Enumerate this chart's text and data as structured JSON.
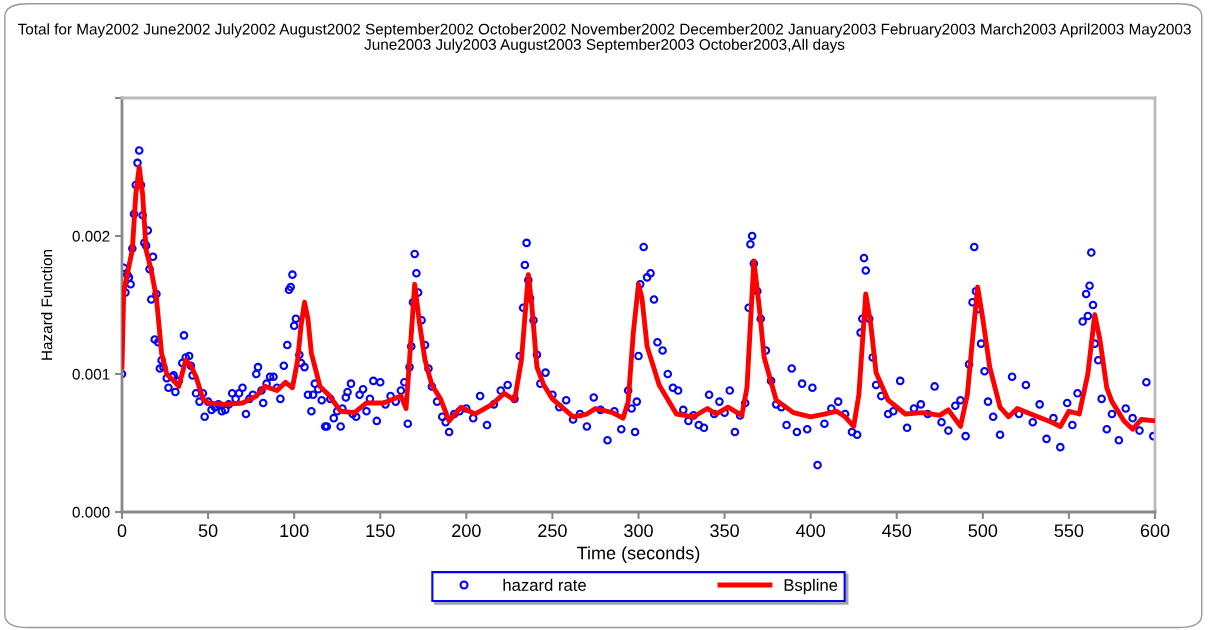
{
  "chart_data": {
    "type": "scatter",
    "title": "Total for May2002 June2002 July2002 August2002 September2002 October2002 November2002 December2002 January2003 February2003 March2003 April2003 May2003 June2003 July2003 August2003 September2003 October2003,All days",
    "xlabel": "Time (seconds)",
    "ylabel": "Hazard Function",
    "xlim": [
      0,
      600
    ],
    "xticks": [
      0,
      50,
      100,
      150,
      200,
      250,
      300,
      350,
      400,
      450,
      500,
      550,
      600
    ],
    "ylim": [
      0,
      0.003
    ],
    "yticks": [
      {
        "value": 0,
        "label": "0.000"
      },
      {
        "value": 0.001,
        "label": "0.001"
      },
      {
        "value": 0.002,
        "label": "0.002"
      },
      {
        "value": 0.003,
        "label": null
      }
    ],
    "grid": false,
    "legend": "bottom",
    "series": [
      {
        "name": "hazard rate",
        "color": "#0000ff",
        "marker": "circle",
        "x": [
          0,
          1,
          2,
          3,
          4,
          5,
          6,
          7,
          8,
          9,
          10,
          11,
          12,
          13,
          14,
          15,
          16,
          17,
          18,
          19,
          20,
          21,
          22,
          23,
          24,
          26,
          27,
          29,
          30,
          31,
          33,
          35,
          36,
          37,
          39,
          40,
          41,
          43,
          45,
          47,
          48,
          50,
          52,
          54,
          56,
          58,
          60,
          62,
          64,
          66,
          68,
          70,
          72,
          74,
          76,
          78,
          79,
          81,
          82,
          84,
          86,
          88,
          90,
          92,
          94,
          96,
          97,
          98,
          99,
          100,
          101,
          103,
          104,
          106,
          108,
          110,
          111,
          112,
          114,
          116,
          118,
          119,
          121,
          123,
          125,
          127,
          128,
          130,
          131,
          133,
          134,
          136,
          138,
          140,
          142,
          144,
          146,
          148,
          150,
          153,
          156,
          159,
          162,
          164,
          166,
          167,
          168,
          169,
          170,
          171,
          172,
          174,
          176,
          178,
          180,
          183,
          186,
          188,
          190,
          193,
          196,
          200,
          204,
          208,
          212,
          216,
          220,
          224,
          228,
          231,
          233,
          234,
          235,
          236,
          237,
          239,
          241,
          243,
          246,
          250,
          254,
          258,
          262,
          266,
          270,
          274,
          278,
          282,
          286,
          290,
          294,
          296,
          298,
          299,
          300,
          301,
          303,
          305,
          307,
          309,
          311,
          314,
          317,
          320,
          323,
          326,
          329,
          332,
          335,
          338,
          341,
          344,
          347,
          350,
          353,
          356,
          359,
          362,
          364,
          365,
          366,
          367,
          369,
          371,
          374,
          377,
          380,
          383,
          386,
          389,
          392,
          395,
          398,
          401,
          404,
          408,
          412,
          416,
          420,
          424,
          427,
          429,
          430,
          431,
          432,
          434,
          436,
          438,
          441,
          445,
          448,
          452,
          456,
          460,
          464,
          468,
          472,
          476,
          480,
          484,
          487,
          490,
          492,
          494,
          495,
          496,
          497,
          499,
          501,
          503,
          506,
          510,
          517,
          521,
          525,
          529,
          533,
          537,
          541,
          545,
          549,
          552,
          555,
          558,
          560,
          561,
          562,
          563,
          564,
          565,
          567,
          569,
          572,
          575,
          579,
          583,
          587,
          591,
          595,
          599
        ],
        "values": [
          0.001,
          0.00177,
          0.00159,
          0.00172,
          0.0017,
          0.00165,
          0.00191,
          0.00216,
          0.00237,
          0.00253,
          0.00262,
          0.00237,
          0.00215,
          0.00195,
          0.00193,
          0.00204,
          0.00176,
          0.00154,
          0.00185,
          0.00125,
          0.00158,
          0.00123,
          0.00104,
          0.0011,
          0.00105,
          0.00097,
          0.0009,
          0.00098,
          0.00099,
          0.00087,
          0.00095,
          0.00108,
          0.00128,
          0.00112,
          0.00113,
          0.00106,
          0.00099,
          0.00086,
          0.0008,
          0.00086,
          0.00069,
          0.0008,
          0.00074,
          0.00076,
          0.00078,
          0.00073,
          0.00074,
          0.00078,
          0.00086,
          0.00082,
          0.00086,
          0.0009,
          0.00071,
          0.00082,
          0.00085,
          0.001,
          0.00105,
          0.00088,
          0.00079,
          0.00093,
          0.00098,
          0.00098,
          0.0009,
          0.00082,
          0.00106,
          0.00121,
          0.00161,
          0.00163,
          0.00172,
          0.00135,
          0.0014,
          0.00114,
          0.00108,
          0.00105,
          0.00085,
          0.00073,
          0.00085,
          0.00093,
          0.00089,
          0.00081,
          0.00062,
          0.00062,
          0.00082,
          0.00068,
          0.00073,
          0.00062,
          0.00075,
          0.00083,
          0.00087,
          0.00093,
          0.00071,
          0.00069,
          0.00085,
          0.00089,
          0.00073,
          0.00082,
          0.00095,
          0.00066,
          0.00094,
          0.00078,
          0.00084,
          0.0008,
          0.00088,
          0.00094,
          0.00064,
          0.00105,
          0.0012,
          0.00152,
          0.00187,
          0.00173,
          0.00159,
          0.00139,
          0.00121,
          0.00104,
          0.00091,
          0.0008,
          0.00069,
          0.00065,
          0.00058,
          0.00071,
          0.00073,
          0.00075,
          0.00068,
          0.00084,
          0.00063,
          0.00078,
          0.00088,
          0.00092,
          0.00082,
          0.00113,
          0.00148,
          0.00179,
          0.00195,
          0.00168,
          0.00155,
          0.00139,
          0.00114,
          0.00093,
          0.00101,
          0.00085,
          0.00076,
          0.00081,
          0.00067,
          0.00071,
          0.00062,
          0.00083,
          0.00074,
          0.00052,
          0.00073,
          0.0006,
          0.00088,
          0.00075,
          0.00058,
          0.0008,
          0.00113,
          0.00165,
          0.00192,
          0.0017,
          0.00173,
          0.00154,
          0.00123,
          0.00117,
          0.001,
          0.0009,
          0.00088,
          0.00074,
          0.00066,
          0.0007,
          0.00063,
          0.00061,
          0.00085,
          0.00071,
          0.0008,
          0.00072,
          0.00088,
          0.00058,
          0.0007,
          0.00079,
          0.00148,
          0.00194,
          0.002,
          0.0018,
          0.0016,
          0.0014,
          0.00117,
          0.00095,
          0.00078,
          0.00076,
          0.00063,
          0.00104,
          0.00058,
          0.00093,
          0.0006,
          0.0009,
          0.00034,
          0.00064,
          0.00075,
          0.0008,
          0.00071,
          0.00058,
          0.00056,
          0.0013,
          0.0014,
          0.00184,
          0.00175,
          0.0014,
          0.00112,
          0.00092,
          0.00084,
          0.00071,
          0.00073,
          0.00095,
          0.00061,
          0.00075,
          0.00078,
          0.00071,
          0.00091,
          0.00065,
          0.00059,
          0.00077,
          0.00081,
          0.00055,
          0.00107,
          0.00152,
          0.00192,
          0.0016,
          0.00147,
          0.00122,
          0.00102,
          0.0008,
          0.00069,
          0.00056,
          0.00098,
          0.00071,
          0.00092,
          0.00065,
          0.00078,
          0.00053,
          0.00068,
          0.00047,
          0.00079,
          0.00063,
          0.00086,
          0.00138,
          0.00158,
          0.00142,
          0.00164,
          0.00188,
          0.0015,
          0.00122,
          0.0011,
          0.00082,
          0.0006,
          0.00071,
          0.00052,
          0.00075,
          0.00068,
          0.00059,
          0.00094,
          0.00055
        ]
      },
      {
        "name": "Bspline",
        "type": "line",
        "color": "#ff0000",
        "marker": "none",
        "line_style": "solid",
        "x": [
          0,
          1,
          3,
          6,
          8,
          10,
          12,
          14,
          17,
          20,
          23,
          26,
          30,
          33,
          37,
          40,
          43,
          47,
          50,
          60,
          70,
          78,
          83,
          90,
          95,
          99,
          102,
          104,
          106,
          108,
          110,
          115,
          120,
          127,
          135,
          142,
          152,
          158,
          162,
          165,
          167,
          170,
          173,
          176,
          180,
          185,
          190,
          197,
          205,
          215,
          222,
          228,
          232,
          236,
          238,
          241,
          245,
          250,
          262,
          270,
          275,
          285,
          291,
          294,
          297,
          300,
          302,
          305,
          312,
          322,
          332,
          340,
          345,
          352,
          360,
          363,
          367,
          370,
          373,
          380,
          390,
          400,
          408,
          415,
          420,
          425,
          428,
          432,
          435,
          438,
          445,
          455,
          465,
          475,
          480,
          487,
          491,
          494,
          497,
          500,
          504,
          510,
          515,
          520,
          530,
          540,
          545,
          550,
          556,
          561,
          565,
          568,
          572,
          575,
          582,
          587,
          592,
          600
        ],
        "values": [
          0.00105,
          0.0016,
          0.00172,
          0.0019,
          0.0023,
          0.0025,
          0.0023,
          0.0019,
          0.00175,
          0.00155,
          0.00115,
          0.001,
          0.00095,
          0.00091,
          0.0011,
          0.00106,
          0.00098,
          0.00082,
          0.00079,
          0.00078,
          0.00079,
          0.00084,
          0.00091,
          0.00088,
          0.00094,
          0.0009,
          0.0011,
          0.00135,
          0.00152,
          0.0014,
          0.00115,
          0.00091,
          0.00085,
          0.00073,
          0.00072,
          0.00079,
          0.00079,
          0.00082,
          0.00084,
          0.00075,
          0.0011,
          0.00165,
          0.00135,
          0.0011,
          0.00092,
          0.00082,
          0.00066,
          0.00076,
          0.00071,
          0.00078,
          0.00086,
          0.00081,
          0.0011,
          0.00172,
          0.0015,
          0.00105,
          0.00092,
          0.00082,
          0.00069,
          0.00071,
          0.00075,
          0.00072,
          0.00068,
          0.0008,
          0.0013,
          0.00165,
          0.00155,
          0.0012,
          0.00092,
          0.00071,
          0.00069,
          0.00075,
          0.00071,
          0.00076,
          0.0007,
          0.0009,
          0.00182,
          0.0015,
          0.00112,
          0.00081,
          0.00072,
          0.00069,
          0.00071,
          0.00073,
          0.00069,
          0.00062,
          0.00085,
          0.00158,
          0.00135,
          0.00101,
          0.00081,
          0.00071,
          0.00072,
          0.0007,
          0.00074,
          0.00062,
          0.00085,
          0.00125,
          0.00163,
          0.0014,
          0.00105,
          0.00076,
          0.00069,
          0.00075,
          0.0007,
          0.00065,
          0.00062,
          0.00073,
          0.00071,
          0.001,
          0.00143,
          0.00125,
          0.0009,
          0.0008,
          0.00066,
          0.0006,
          0.00067,
          0.00066
        ]
      }
    ]
  }
}
